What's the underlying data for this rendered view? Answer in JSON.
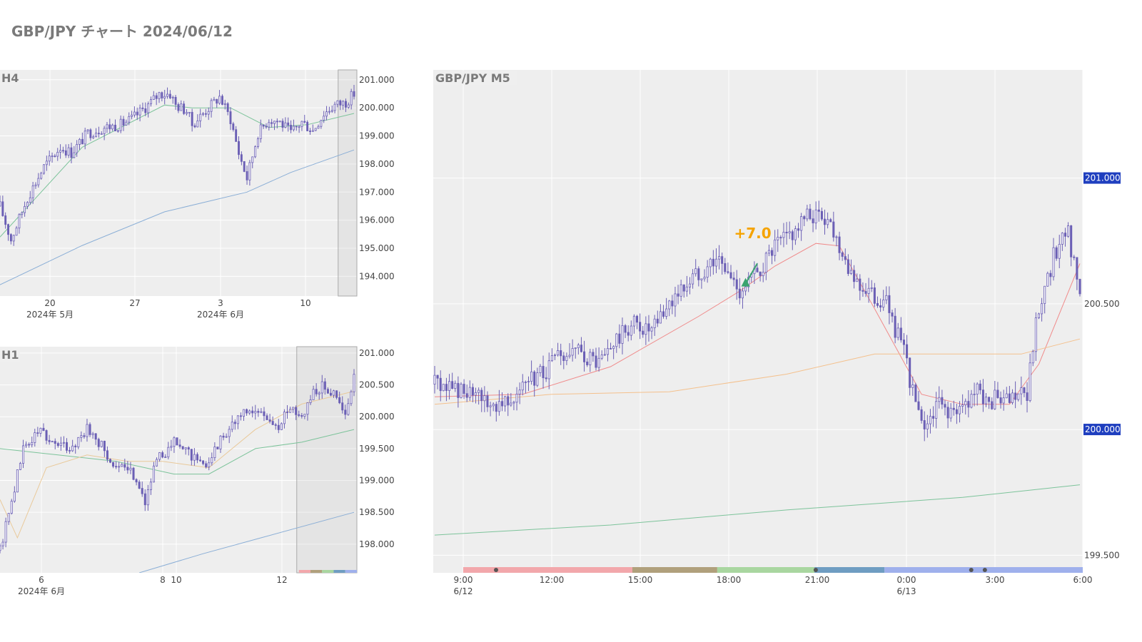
{
  "page": {
    "title": "GBP/JPY チャート 2024/06/12"
  },
  "colors": {
    "plot_bg": "#eeeeee",
    "grid": "#ffffff",
    "candle": "#6b5fb5",
    "ma_green": "#7cc39a",
    "ma_blue": "#8aaed6",
    "ma_orange": "#f4c08c",
    "ma_red": "#f08a8a",
    "ma_tan": "#e9c99a",
    "annotation": "#f5a300",
    "arrow": "#3aa36e",
    "price_badge_bg": "#1f3fbf",
    "price_badge_text": "#ffffff",
    "axis_text": "#444444",
    "panel_title": "#7a7a7a"
  },
  "chart_data": [
    {
      "type": "candlestick",
      "title": "H4",
      "ylim": [
        193.3,
        201.35
      ],
      "yticks": [
        194.0,
        195.0,
        196.0,
        197.0,
        198.0,
        199.0,
        200.0,
        201.0
      ],
      "ytick_labels": [
        "194.000",
        "195.000",
        "196.000",
        "197.000",
        "198.000",
        "199.000",
        "200.000",
        "201.000"
      ],
      "xticks": [
        {
          "label": "20",
          "sub": "2024年 5月"
        },
        {
          "label": "27",
          "sub": ""
        },
        {
          "label": "3",
          "sub": "2024年 6月"
        },
        {
          "label": "10",
          "sub": ""
        }
      ],
      "close_path": [
        [
          0,
          196.5
        ],
        [
          4,
          195.3
        ],
        [
          10,
          196.8
        ],
        [
          16,
          197.9
        ],
        [
          22,
          198.6
        ],
        [
          26,
          198.4
        ],
        [
          32,
          199.1
        ],
        [
          38,
          199.3
        ],
        [
          44,
          199.4
        ],
        [
          48,
          199.6
        ],
        [
          54,
          200.1
        ],
        [
          58,
          200.5
        ],
        [
          62,
          200.5
        ],
        [
          64,
          200.1
        ],
        [
          68,
          199.9
        ],
        [
          70,
          199.4
        ],
        [
          74,
          199.8
        ],
        [
          78,
          200.2
        ],
        [
          80,
          200.4
        ],
        [
          84,
          199.6
        ],
        [
          87,
          198.4
        ],
        [
          90,
          197.5
        ],
        [
          94,
          199.1
        ],
        [
          98,
          199.6
        ],
        [
          102,
          199.5
        ],
        [
          106,
          199.1
        ],
        [
          110,
          199.5
        ],
        [
          114,
          199.2
        ],
        [
          118,
          199.8
        ],
        [
          122,
          200.1
        ],
        [
          126,
          200.2
        ],
        [
          129,
          200.5
        ]
      ],
      "n_candles": 130,
      "ma_series": [
        {
          "color": "ma_green",
          "points": [
            [
              0,
              195.4
            ],
            [
              30,
              198.6
            ],
            [
              60,
              200.1
            ],
            [
              70,
              200.0
            ],
            [
              84,
              200.0
            ],
            [
              98,
              199.3
            ],
            [
              112,
              199.4
            ],
            [
              129,
              199.8
            ]
          ]
        },
        {
          "color": "ma_blue",
          "points": [
            [
              0,
              193.7
            ],
            [
              30,
              195.1
            ],
            [
              60,
              196.3
            ],
            [
              90,
              197.0
            ],
            [
              106,
              197.7
            ],
            [
              129,
              198.5
            ]
          ]
        }
      ],
      "highlight_from": 124
    },
    {
      "type": "candlestick",
      "title": "H1",
      "ylim": [
        197.55,
        201.1
      ],
      "yticks": [
        198.0,
        198.5,
        199.0,
        199.5,
        200.0,
        200.5,
        201.0
      ],
      "ytick_labels": [
        "198.000",
        "198.500",
        "199.000",
        "199.500",
        "200.000",
        "200.500",
        "201.000"
      ],
      "xticks": [
        {
          "label": "6",
          "sub": "2024年 6月"
        },
        {
          "label": "8",
          "sub": ""
        },
        {
          "label": "10",
          "sub": ""
        },
        {
          "label": "12",
          "sub": ""
        }
      ],
      "close_path": [
        [
          0,
          197.9
        ],
        [
          4,
          198.7
        ],
        [
          8,
          199.5
        ],
        [
          14,
          199.8
        ],
        [
          18,
          199.6
        ],
        [
          24,
          199.5
        ],
        [
          30,
          199.8
        ],
        [
          34,
          199.6
        ],
        [
          40,
          199.2
        ],
        [
          46,
          199.1
        ],
        [
          50,
          198.7
        ],
        [
          54,
          199.3
        ],
        [
          60,
          199.6
        ],
        [
          66,
          199.4
        ],
        [
          70,
          199.2
        ],
        [
          74,
          199.5
        ],
        [
          80,
          199.9
        ],
        [
          86,
          200.1
        ],
        [
          92,
          200.0
        ],
        [
          96,
          199.8
        ],
        [
          100,
          200.2
        ],
        [
          104,
          200.0
        ],
        [
          108,
          200.4
        ],
        [
          112,
          200.5
        ],
        [
          116,
          200.3
        ],
        [
          119,
          200.0
        ],
        [
          122,
          200.6
        ]
      ],
      "n_candles": 123,
      "ma_series": [
        {
          "color": "ma_green",
          "points": [
            [
              0,
              199.5
            ],
            [
              20,
              199.4
            ],
            [
              40,
              199.3
            ],
            [
              60,
              199.1
            ],
            [
              72,
              199.1
            ],
            [
              88,
              199.5
            ],
            [
              104,
              199.6
            ],
            [
              122,
              199.8
            ]
          ]
        },
        {
          "color": "ma_tan",
          "points": [
            [
              0,
              198.7
            ],
            [
              6,
              198.1
            ],
            [
              16,
              199.2
            ],
            [
              30,
              199.4
            ],
            [
              44,
              199.3
            ],
            [
              56,
              199.3
            ],
            [
              72,
              199.2
            ],
            [
              88,
              199.8
            ],
            [
              104,
              200.2
            ],
            [
              122,
              200.4
            ]
          ]
        },
        {
          "color": "ma_blue",
          "points": [
            [
              48,
              197.55
            ],
            [
              70,
              197.85
            ],
            [
              90,
              198.1
            ],
            [
              122,
              198.5
            ]
          ]
        }
      ],
      "highlight_from": 103
    },
    {
      "type": "candlestick",
      "title": "GBP/JPY M5",
      "ylim": [
        199.43,
        201.43
      ],
      "yticks": [
        199.5,
        200.0,
        200.5,
        201.0
      ],
      "ytick_labels": [
        "199.500",
        "200.000",
        "200.500",
        "201.000"
      ],
      "price_badges": [
        "201.000",
        "200.000"
      ],
      "xticks": [
        {
          "label": "9:00",
          "sub": "6/12"
        },
        {
          "label": "12:00",
          "sub": ""
        },
        {
          "label": "15:00",
          "sub": ""
        },
        {
          "label": "18:00",
          "sub": ""
        },
        {
          "label": "21:00",
          "sub": ""
        },
        {
          "label": "0:00",
          "sub": "6/13"
        },
        {
          "label": "3:00",
          "sub": ""
        },
        {
          "label": "6:00",
          "sub": ""
        }
      ],
      "close_path": [
        [
          0,
          200.18
        ],
        [
          8,
          200.16
        ],
        [
          14,
          200.12
        ],
        [
          20,
          200.1
        ],
        [
          28,
          200.15
        ],
        [
          34,
          200.2
        ],
        [
          42,
          200.28
        ],
        [
          50,
          200.3
        ],
        [
          56,
          200.26
        ],
        [
          62,
          200.35
        ],
        [
          68,
          200.42
        ],
        [
          74,
          200.38
        ],
        [
          80,
          200.5
        ],
        [
          88,
          200.6
        ],
        [
          96,
          200.68
        ],
        [
          104,
          200.55
        ],
        [
          110,
          200.62
        ],
        [
          116,
          200.72
        ],
        [
          122,
          200.78
        ],
        [
          128,
          200.85
        ],
        [
          134,
          200.84
        ],
        [
          140,
          200.68
        ],
        [
          144,
          200.58
        ],
        [
          150,
          200.52
        ],
        [
          154,
          200.5
        ],
        [
          160,
          200.3
        ],
        [
          166,
          200.0
        ],
        [
          172,
          200.1
        ],
        [
          178,
          200.05
        ],
        [
          184,
          200.15
        ],
        [
          190,
          200.12
        ],
        [
          196,
          200.1
        ],
        [
          202,
          200.15
        ],
        [
          206,
          200.5
        ],
        [
          212,
          200.72
        ],
        [
          216,
          200.8
        ],
        [
          220,
          200.5
        ]
      ],
      "n_candles": 221,
      "ma_series": [
        {
          "color": "ma_red",
          "points": [
            [
              0,
              200.13
            ],
            [
              30,
              200.14
            ],
            [
              60,
              200.25
            ],
            [
              90,
              200.45
            ],
            [
              104,
              200.55
            ],
            [
              116,
              200.65
            ],
            [
              130,
              200.74
            ],
            [
              138,
              200.73
            ],
            [
              150,
              200.48
            ],
            [
              166,
              200.14
            ],
            [
              180,
              200.1
            ],
            [
              196,
              200.1
            ],
            [
              206,
              200.26
            ],
            [
              220,
              200.66
            ]
          ]
        },
        {
          "color": "ma_orange",
          "points": [
            [
              0,
              200.1
            ],
            [
              40,
              200.14
            ],
            [
              80,
              200.15
            ],
            [
              120,
              200.22
            ],
            [
              150,
              200.3
            ],
            [
              180,
              200.3
            ],
            [
              200,
              200.3
            ],
            [
              220,
              200.36
            ]
          ]
        },
        {
          "color": "ma_green",
          "points": [
            [
              0,
              199.58
            ],
            [
              60,
              199.62
            ],
            [
              120,
              199.68
            ],
            [
              180,
              199.73
            ],
            [
              220,
              199.78
            ]
          ]
        }
      ],
      "annotation": {
        "text": "+7.0",
        "at": 105,
        "price": 200.76
      },
      "arrow": {
        "from": 106,
        "to": 110,
        "from_price": 200.58,
        "to_price": 200.66
      },
      "session_band": [
        {
          "color": "#f2a7ab",
          "from": 0,
          "to": 0.273
        },
        {
          "color": "#b0a07c",
          "from": 0.273,
          "to": 0.41
        },
        {
          "color": "#a9d6a0",
          "from": 0.41,
          "to": 0.567
        },
        {
          "color": "#6f9dc2",
          "from": 0.567,
          "to": 0.68
        },
        {
          "color": "#9fb0ec",
          "from": 0.68,
          "to": 1.0
        }
      ],
      "session_dots": [
        0.053,
        0.569,
        0.82,
        0.842
      ]
    }
  ]
}
